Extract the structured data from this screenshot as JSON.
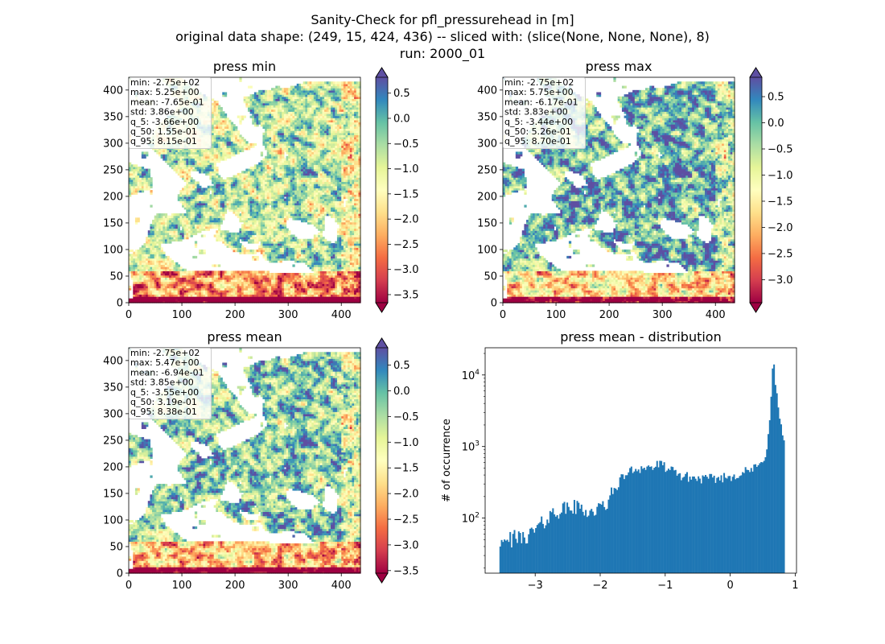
{
  "figure": {
    "title_lines": [
      "Sanity-Check for pfl_pressurehead in [m]",
      "original data shape: (249, 15, 424, 436) -- sliced with: (slice(None, None, None), 8)",
      "run: 2000_01"
    ]
  },
  "colors": {
    "histogram": "#1f77b4",
    "background": "#ffffff",
    "colormap": "Spectral"
  },
  "chart_data": [
    {
      "type": "heatmap",
      "title": "press min",
      "xlim": [
        0,
        436
      ],
      "ylim": [
        0,
        424
      ],
      "xticks": [
        "0",
        "100",
        "200",
        "300",
        "400"
      ],
      "yticks": [
        "0",
        "50",
        "100",
        "150",
        "200",
        "250",
        "300",
        "350",
        "400"
      ],
      "colorbar": {
        "colormap": "Spectral",
        "range": [
          -3.66,
          0.815
        ],
        "extend": "both",
        "ticks": [
          "0.5",
          "0.0",
          "−0.5",
          "−1.0",
          "−1.5",
          "−2.0",
          "−2.5",
          "−3.0",
          "−3.5"
        ]
      },
      "stats": [
        "min: -2.75e+02",
        "max: 5.25e+00",
        "mean: -7.65e-01",
        "std: 3.86e+00",
        "q_5: -3.66e+00",
        "q_50: 1.55e-01",
        "q_95: 8.15e-01"
      ]
    },
    {
      "type": "heatmap",
      "title": "press max",
      "xlim": [
        0,
        436
      ],
      "ylim": [
        0,
        424
      ],
      "xticks": [
        "0",
        "100",
        "200",
        "300",
        "400"
      ],
      "yticks": [
        "0",
        "50",
        "100",
        "150",
        "200",
        "250",
        "300",
        "350",
        "400"
      ],
      "colorbar": {
        "colormap": "Spectral",
        "range": [
          -3.44,
          0.87
        ],
        "extend": "both",
        "ticks": [
          "0.5",
          "0.0",
          "−0.5",
          "−1.0",
          "−1.5",
          "−2.0",
          "−2.5",
          "−3.0"
        ]
      },
      "stats": [
        "min: -2.75e+02",
        "max: 5.75e+00",
        "mean: -6.17e-01",
        "std: 3.83e+00",
        "q_5: -3.44e+00",
        "q_50: 5.26e-01",
        "q_95: 8.70e-01"
      ]
    },
    {
      "type": "heatmap",
      "title": "press mean",
      "xlim": [
        0,
        436
      ],
      "ylim": [
        0,
        424
      ],
      "xticks": [
        "0",
        "100",
        "200",
        "300",
        "400"
      ],
      "yticks": [
        "0",
        "50",
        "100",
        "150",
        "200",
        "250",
        "300",
        "350",
        "400"
      ],
      "colorbar": {
        "colormap": "Spectral",
        "range": [
          -3.55,
          0.838
        ],
        "extend": "both",
        "ticks": [
          "0.5",
          "0.0",
          "−0.5",
          "−1.0",
          "−1.5",
          "−2.0",
          "−2.5",
          "−3.0",
          "−3.5"
        ]
      },
      "stats": [
        "min: -2.75e+02",
        "max: 5.47e+00",
        "mean: -6.94e-01",
        "std: 3.85e+00",
        "q_5: -3.55e+00",
        "q_50: 3.19e-01",
        "q_95: 8.38e-01"
      ]
    },
    {
      "type": "bar",
      "title": "press mean - distribution",
      "ylabel": "# of occurrence",
      "xlabel": "",
      "yscale": "log",
      "xlim": [
        -3.77,
        1.02
      ],
      "xticks": [
        "−3",
        "−2",
        "−1",
        "0",
        "1"
      ],
      "ylim": [
        17,
        24000
      ],
      "yticks": [
        "10^2",
        "10^3",
        "10^4"
      ],
      "bin_range": [
        -3.55,
        0.838
      ],
      "profile": [
        [
          -3.55,
          33
        ],
        [
          -3.45,
          40
        ],
        [
          -3.35,
          48
        ],
        [
          -3.25,
          52
        ],
        [
          -3.15,
          55
        ],
        [
          -3.05,
          62
        ],
        [
          -2.95,
          75
        ],
        [
          -2.85,
          90
        ],
        [
          -2.75,
          115
        ],
        [
          -2.6,
          130
        ],
        [
          -2.45,
          140
        ],
        [
          -2.3,
          140
        ],
        [
          -2.15,
          120
        ],
        [
          -2.0,
          135
        ],
        [
          -1.9,
          160
        ],
        [
          -1.8,
          230
        ],
        [
          -1.7,
          330
        ],
        [
          -1.6,
          420
        ],
        [
          -1.5,
          470
        ],
        [
          -1.35,
          510
        ],
        [
          -1.2,
          510
        ],
        [
          -1.1,
          560
        ],
        [
          -1.0,
          520
        ],
        [
          -0.9,
          450
        ],
        [
          -0.75,
          390
        ],
        [
          -0.55,
          360
        ],
        [
          -0.35,
          350
        ],
        [
          -0.2,
          360
        ],
        [
          0.0,
          380
        ],
        [
          0.15,
          420
        ],
        [
          0.3,
          460
        ],
        [
          0.45,
          530
        ],
        [
          0.55,
          800
        ],
        [
          0.62,
          3000
        ],
        [
          0.66,
          17000
        ],
        [
          0.7,
          7000
        ],
        [
          0.75,
          3000
        ],
        [
          0.8,
          1500
        ],
        [
          0.838,
          1000
        ]
      ]
    }
  ]
}
